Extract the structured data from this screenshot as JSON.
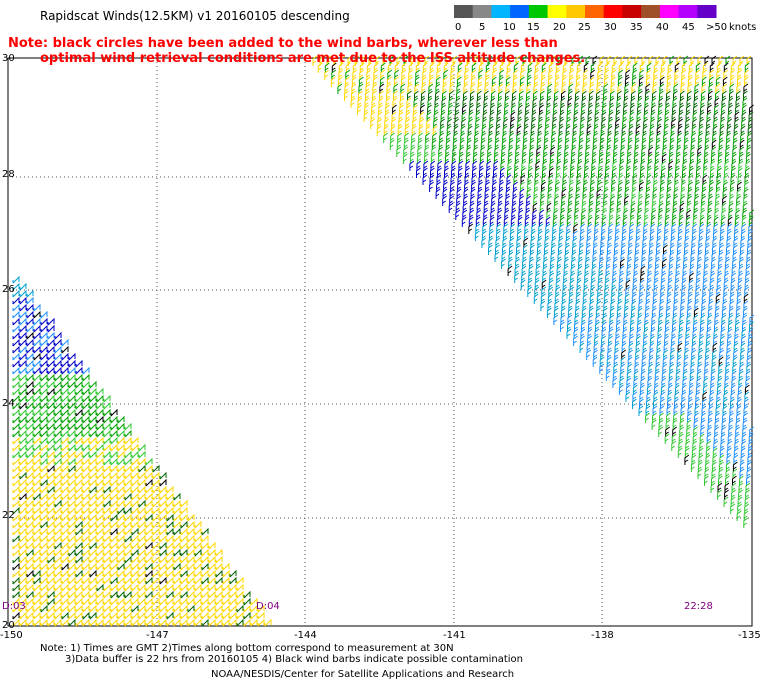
{
  "header": {
    "title": "Rapidscat Winds(12.5KM) v1 20160105 descending",
    "note_line1": "Note: black circles have been added to the wind barbs, wherever less than",
    "note_line2": "optimal wind retrieval conditions are met due to the ISS altitude changes."
  },
  "legend": {
    "unit_label": "knots",
    "tick_labels": [
      "0",
      "5",
      "10",
      "15",
      "20",
      "25",
      "30",
      "35",
      "40",
      "45",
      ">50"
    ],
    "colors": [
      "#555555",
      "#888888",
      "#00b4ff",
      "#0064ff",
      "#00c800",
      "#ffff00",
      "#ffc800",
      "#ff6400",
      "#ff0000",
      "#c80000",
      "#a05028",
      "#ff00ff",
      "#b400ff",
      "#6400c8"
    ]
  },
  "map": {
    "lat_labels": [
      "30",
      "28",
      "26",
      "24",
      "22",
      "20"
    ],
    "lon_labels": [
      "-150",
      "-147",
      "-144",
      "-141",
      "-138",
      "-135"
    ],
    "time_labels": [
      "D:03",
      "D:04",
      "22:28"
    ]
  },
  "footer": {
    "note_line1": "Note: 1) Times are GMT 2)Times along bottom correspond to measurement at 30N",
    "note_line2": "3)Data buffer is 22 hrs from 20160105 4) Black wind barbs indicate possible contamination",
    "credit": "NOAA/NESDIS/Center for Satellite Applications and Research"
  },
  "wind_colors": {
    "yellow": "#ffd700",
    "green": "#00a000",
    "light_green": "#30c830",
    "blue": "#0000c8",
    "light_blue": "#1e90ff",
    "cyan": "#00a0d0",
    "dark_green": "#006400",
    "black": "#000000"
  }
}
